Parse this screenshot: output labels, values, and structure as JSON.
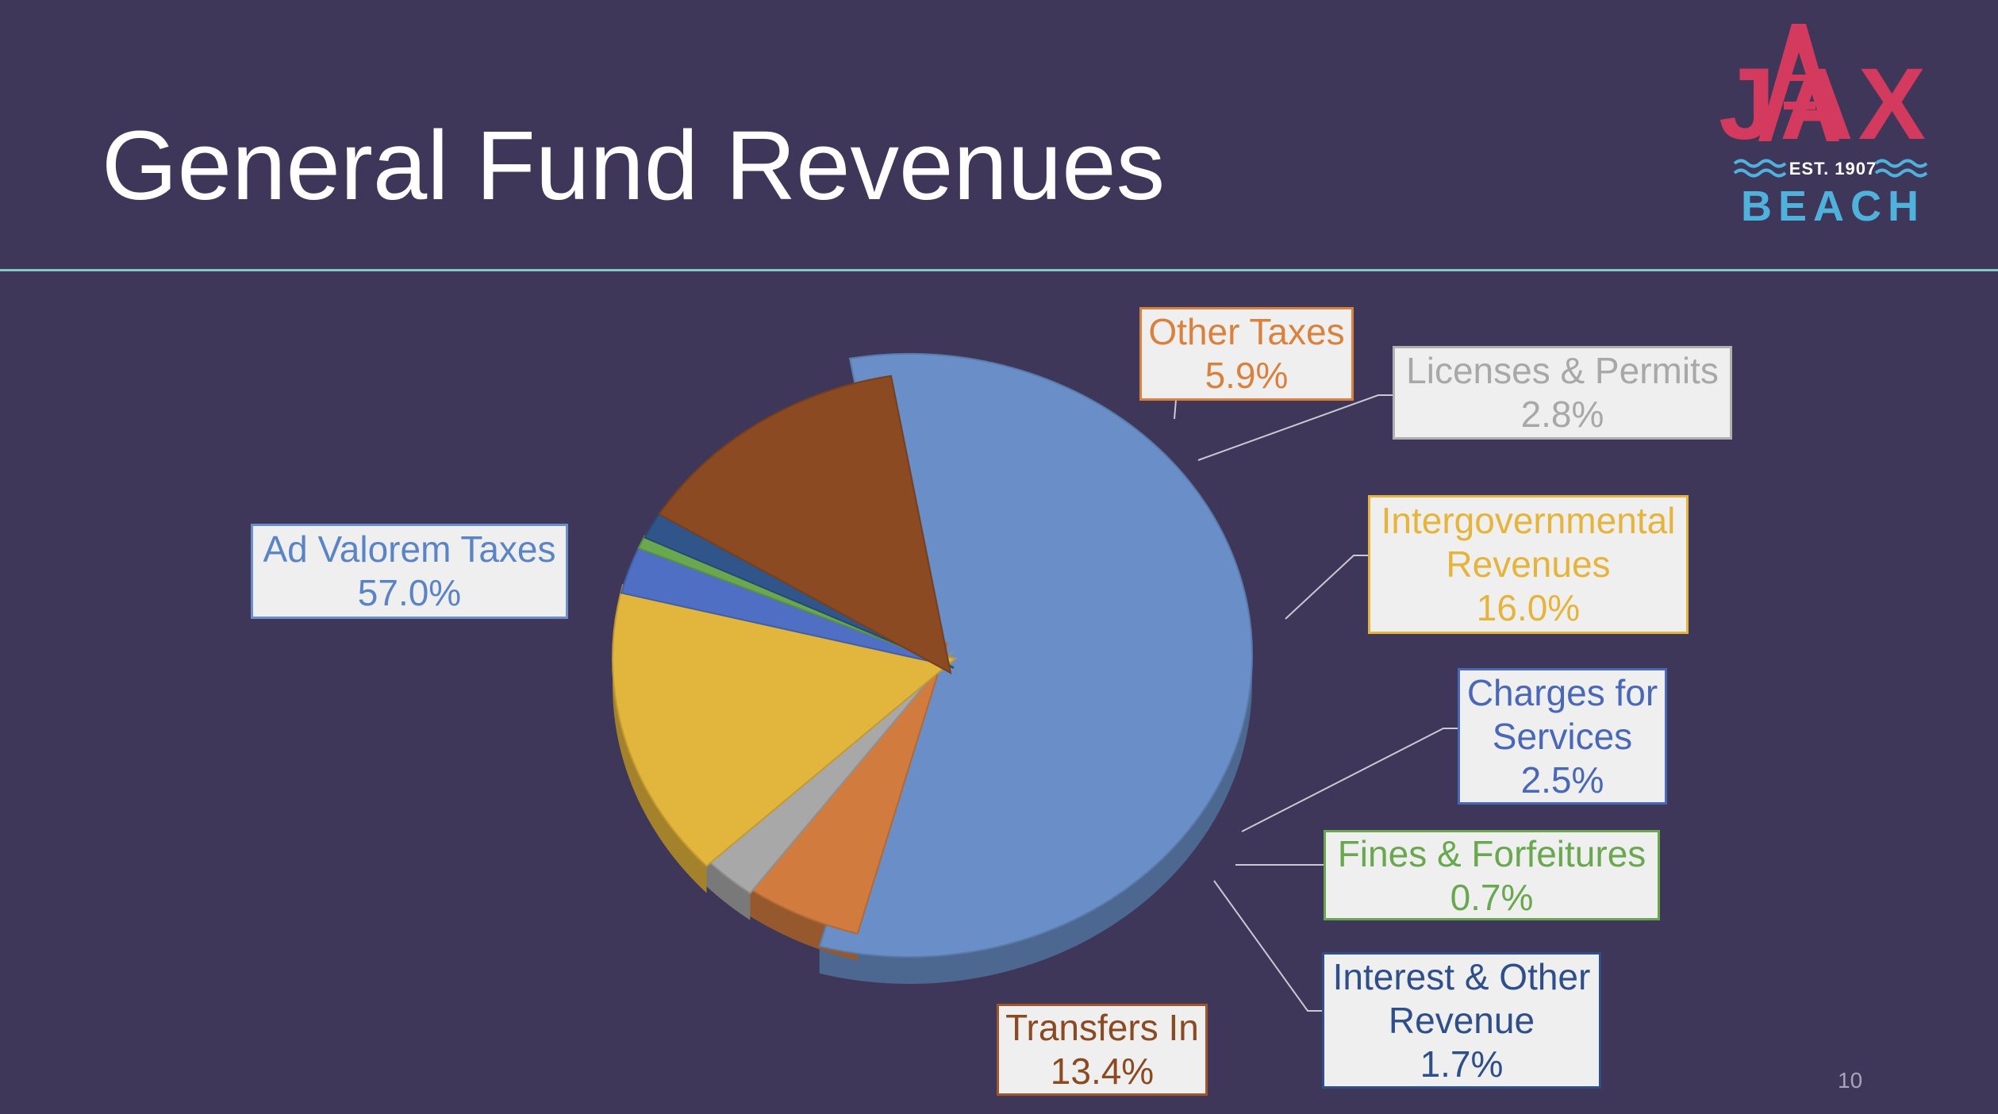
{
  "slide": {
    "title": "General Fund Revenues",
    "page_number": "10"
  },
  "logo": {
    "wordmark": "JAX",
    "established": "EST. 1907",
    "place": "BEACH",
    "colors": {
      "wordmark": "#d33a5d",
      "place": "#4fb2dd",
      "waves": "#4fb2dd"
    }
  },
  "chart_data": {
    "type": "pie",
    "title": "",
    "style": "3d exploded",
    "slices": [
      {
        "name": "Ad Valorem Taxes",
        "value": 57.0,
        "value_label": "57.0%",
        "color": "#6a8fc8",
        "label_color": "#5b84c4",
        "border_color": "#6a8fc8"
      },
      {
        "name": "Other Taxes",
        "value": 5.9,
        "value_label": "5.9%",
        "color": "#d17c3e",
        "label_color": "#d9813d",
        "border_color": "#d9813d"
      },
      {
        "name": "Licenses & Permits",
        "value": 2.8,
        "value_label": "2.8%",
        "color": "#a8a8a8",
        "label_color": "#a8a8a8",
        "border_color": "#b0b0b0"
      },
      {
        "name": "Intergovernmental Revenues",
        "value": 16.0,
        "value_label": "16.0%",
        "color": "#e2b53c",
        "label_color": "#e6b43a",
        "border_color": "#e6b43a"
      },
      {
        "name": "Charges for Services",
        "value": 2.5,
        "value_label": "2.5%",
        "color": "#4e6fc4",
        "label_color": "#4a68b8",
        "border_color": "#4a68b8"
      },
      {
        "name": "Fines & Forfeitures",
        "value": 0.7,
        "value_label": "0.7%",
        "color": "#6aa84f",
        "label_color": "#6aa84f",
        "border_color": "#6aa84f"
      },
      {
        "name": "Interest & Other Revenue",
        "value": 1.7,
        "value_label": "1.7%",
        "color": "#2f558a",
        "label_color": "#2f4f8a",
        "border_color": "#2f4f8a"
      },
      {
        "name": "Transfers In",
        "value": 13.4,
        "value_label": "13.4%",
        "color": "#8b4a22",
        "label_color": "#8b4a22",
        "border_color": "#a0552a"
      }
    ],
    "labels": [
      {
        "lines": [
          "Ad Valorem Taxes",
          "57.0%"
        ]
      },
      {
        "lines": [
          "Other Taxes",
          "5.9%"
        ]
      },
      {
        "lines": [
          "Licenses & Permits",
          "2.8%"
        ]
      },
      {
        "lines": [
          "Intergovernmental",
          "Revenues",
          "16.0%"
        ]
      },
      {
        "lines": [
          "Charges for",
          "Services",
          "2.5%"
        ]
      },
      {
        "lines": [
          "Fines & Forfeitures",
          "0.7%"
        ]
      },
      {
        "lines": [
          "Interest & Other",
          "Revenue",
          "1.7%"
        ]
      },
      {
        "lines": [
          "Transfers In",
          "13.4%"
        ]
      }
    ]
  }
}
